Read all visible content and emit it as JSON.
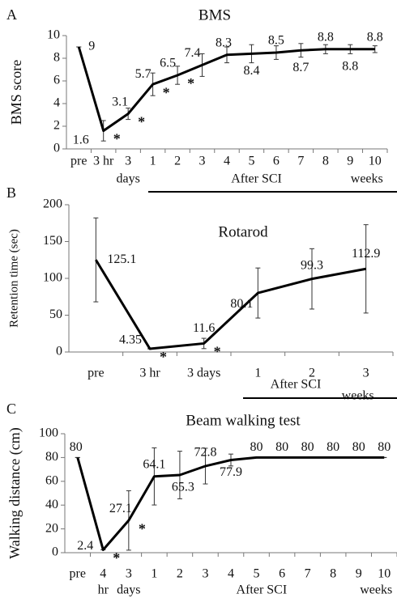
{
  "chart_data": [
    {
      "type": "line",
      "panel": "A",
      "title": "BMS",
      "ylabel": "BMS score",
      "categories": [
        "pre",
        "3 hr",
        "3",
        "1",
        "2",
        "3",
        "4",
        "5",
        "6",
        "7",
        "8",
        "9",
        "10"
      ],
      "x_sublabels": [
        {
          "index": 2,
          "label": "days"
        }
      ],
      "group": {
        "label": "After SCI",
        "end_label": "weeks",
        "from_category": 3
      },
      "values": [
        9,
        1.6,
        3.1,
        5.7,
        6.5,
        7.4,
        8.3,
        8.4,
        8.5,
        8.7,
        8.8,
        8.8,
        8.8
      ],
      "errors": [
        0,
        0.9,
        0.5,
        1.0,
        0.8,
        1.0,
        0.7,
        0.8,
        0.6,
        0.6,
        0.4,
        0.4,
        0.3
      ],
      "significant_points": [
        1,
        2,
        3,
        4
      ],
      "significance_label": "*",
      "color": "#000000",
      "ylim": [
        0,
        10
      ],
      "yticks": [
        0,
        2,
        4,
        6,
        8,
        10
      ]
    },
    {
      "type": "line",
      "panel": "B",
      "title": "Rotarod",
      "ylabel": "Retention time (sec)",
      "categories": [
        "pre",
        "3 hr",
        "3 days",
        "1",
        "2",
        "3"
      ],
      "group": {
        "label": "After SCI",
        "end_label": "weeks",
        "from_category": 3
      },
      "values": [
        125.1,
        4.35,
        11.6,
        80.1,
        99.3,
        112.9
      ],
      "errors": [
        57,
        0,
        7,
        34,
        41,
        60
      ],
      "significant_points": [
        1,
        2
      ],
      "significance_label": "*",
      "color": "#000000",
      "ylim": [
        0,
        200
      ],
      "yticks": [
        0,
        50,
        100,
        150,
        200
      ]
    },
    {
      "type": "line",
      "panel": "C",
      "title": "Beam walking test",
      "ylabel": "Walking distance (cm)",
      "categories": [
        "pre",
        "4",
        "3",
        "1",
        "2",
        "3",
        "4",
        "5",
        "6",
        "7",
        "8",
        "9",
        "10"
      ],
      "x_sublabels": [
        {
          "index": 1,
          "label": "hr"
        },
        {
          "index": 2,
          "label": "days"
        }
      ],
      "group": {
        "label": "After SCI",
        "end_label": "weeks",
        "from_category": 3
      },
      "values": [
        80,
        2.4,
        27.1,
        64.1,
        65.3,
        72.8,
        77.9,
        80,
        80,
        80,
        80,
        80,
        80
      ],
      "errors": [
        0,
        0,
        25,
        24,
        20,
        15,
        5,
        0,
        0,
        0,
        0,
        0,
        0
      ],
      "significant_points": [
        1,
        2
      ],
      "significance_label": "*",
      "color": "#000000",
      "ylim": [
        0,
        100
      ],
      "yticks": [
        0,
        20,
        40,
        60,
        80,
        100
      ]
    }
  ]
}
